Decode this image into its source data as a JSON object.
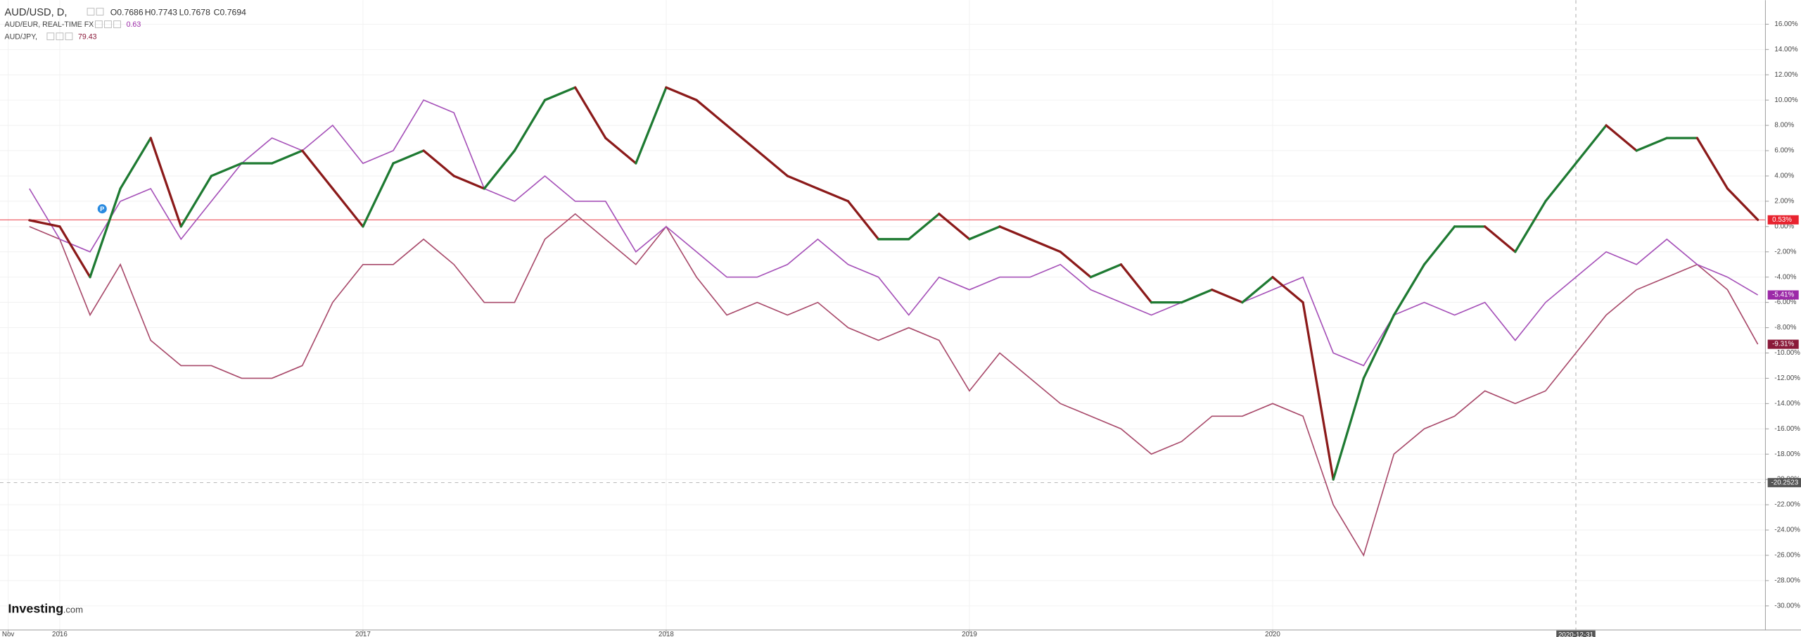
{
  "chart_data": {
    "type": "line",
    "header": {
      "ohlc": [
        "O0.7686",
        "H0.7743",
        "L0.7678",
        "C0.7694"
      ]
    },
    "logo": [
      "Investing",
      ".com"
    ],
    "marker": {
      "label": "P",
      "x": 2016.14,
      "y": 1.4
    },
    "x": [
      2015.9,
      2016.0,
      2016.1,
      2016.2,
      2016.3,
      2016.4,
      2016.5,
      2016.6,
      2016.7,
      2016.8,
      2016.9,
      2017.0,
      2017.1,
      2017.2,
      2017.3,
      2017.4,
      2017.5,
      2017.6,
      2017.7,
      2017.8,
      2017.9,
      2018.0,
      2018.1,
      2018.2,
      2018.3,
      2018.4,
      2018.5,
      2018.6,
      2018.7,
      2018.8,
      2018.9,
      2019.0,
      2019.1,
      2019.2,
      2019.3,
      2019.4,
      2019.5,
      2019.6,
      2019.7,
      2019.8,
      2019.9,
      2020.0,
      2020.1,
      2020.2,
      2020.3,
      2020.4,
      2020.5,
      2020.6,
      2020.7,
      2020.8,
      2020.9,
      2021.0,
      2021.1,
      2021.2,
      2021.3,
      2021.4,
      2021.5,
      2021.6
    ],
    "xlim": [
      2015.803,
      2021.625
    ],
    "xticks": [
      {
        "value": 2015.83,
        "label": "Nov"
      },
      2016,
      2017,
      2018,
      2019,
      2020
    ],
    "ylim": [
      -31.9,
      17.9
    ],
    "yticks": [
      {
        "value": 16,
        "label": "16.00%"
      },
      {
        "value": 14,
        "label": "14.00%"
      },
      {
        "value": 12,
        "label": "12.00%"
      },
      {
        "value": 10,
        "label": "10.00%"
      },
      {
        "value": 8,
        "label": "8.00%"
      },
      {
        "value": 6,
        "label": "6.00%"
      },
      {
        "value": 4,
        "label": "4.00%"
      },
      {
        "value": 2,
        "label": "2.00%"
      },
      {
        "value": 0,
        "label": "0.00%"
      },
      {
        "value": -2,
        "label": "-2.00%"
      },
      {
        "value": -4,
        "label": "-4.00%"
      },
      {
        "value": -6,
        "label": "-6.00%"
      },
      {
        "value": -8,
        "label": "-8.00%"
      },
      {
        "value": -10,
        "label": "-10.00%"
      },
      {
        "value": -12,
        "label": "-12.00%"
      },
      {
        "value": -14,
        "label": "-14.00%"
      },
      {
        "value": -16,
        "label": "-16.00%"
      },
      {
        "value": -18,
        "label": "-18.00%"
      },
      {
        "value": -20,
        "label": "-20.00%"
      },
      {
        "value": -22,
        "label": "-22.00%"
      },
      {
        "value": -24,
        "label": "-24.00%"
      },
      {
        "value": -26,
        "label": "-26.00%"
      },
      {
        "value": -28,
        "label": "-28.00%"
      },
      {
        "value": -30,
        "label": "-30.00%"
      }
    ],
    "grid": true,
    "crosshair": {
      "x": {
        "value": 2021.0,
        "label": "2020-12-31"
      },
      "y": -20.2523
    },
    "series": [
      {
        "name": "AUD/USD, D,",
        "color": "#1e7a32",
        "down_color": "#8b1a1a",
        "label_color": "#e8232f",
        "values": [
          0.5,
          0,
          -4,
          3,
          7,
          0,
          4,
          5,
          5,
          6,
          3,
          0,
          5,
          6,
          4,
          3,
          6,
          10,
          11,
          7,
          5,
          11,
          10,
          8,
          6,
          4,
          3,
          2,
          -1,
          -1,
          1,
          -1,
          0,
          -1,
          -2,
          -4,
          -3,
          -6,
          -6,
          -5,
          -6,
          -4,
          -6,
          -20,
          -12,
          -7,
          -3,
          0,
          0,
          -2,
          2,
          5,
          8,
          6,
          7,
          7,
          3,
          0.53
        ],
        "value_labels": [
          null,
          null,
          null,
          null,
          null,
          null,
          null,
          null,
          null,
          null,
          null,
          null,
          null,
          null,
          null,
          null,
          null,
          null,
          null,
          null,
          null,
          null,
          null,
          null,
          null,
          null,
          null,
          null,
          null,
          null,
          null,
          null,
          null,
          null,
          null,
          null,
          null,
          null,
          null,
          null,
          null,
          null,
          null,
          null,
          null,
          null,
          null,
          null,
          null,
          null,
          null,
          null,
          null,
          null,
          null,
          null,
          null,
          "0.53%"
        ]
      },
      {
        "name": "AUD/EUR, REAL-TIME FX",
        "last_price": "0.63",
        "color": "#a550b8",
        "label_color": "#9c2aa8",
        "values": [
          3,
          -1,
          -2,
          2,
          3,
          -1,
          2,
          5,
          7,
          6,
          8,
          5,
          6,
          10,
          9,
          3,
          2,
          4,
          2,
          2,
          -2,
          0,
          -2,
          -4,
          -4,
          -3,
          -1,
          -3,
          -4,
          -7,
          -4,
          -5,
          -4,
          -4,
          -3,
          -5,
          -6,
          -7,
          -6,
          -5,
          -6,
          -5,
          -4,
          -10,
          -11,
          -7,
          -6,
          -7,
          -6,
          -9,
          -6,
          -4,
          -2,
          -3,
          -1,
          -3,
          -4,
          -5.41
        ],
        "value_labels": [
          null,
          null,
          null,
          null,
          null,
          null,
          null,
          null,
          null,
          null,
          null,
          null,
          null,
          null,
          null,
          null,
          null,
          null,
          null,
          null,
          null,
          null,
          null,
          null,
          null,
          null,
          null,
          null,
          null,
          null,
          null,
          null,
          null,
          null,
          null,
          null,
          null,
          null,
          null,
          null,
          null,
          null,
          null,
          null,
          null,
          null,
          null,
          null,
          null,
          null,
          null,
          null,
          null,
          null,
          null,
          null,
          null,
          "-5.41%"
        ]
      },
      {
        "name": "AUD/JPY,",
        "last_price": "79.43",
        "color": "#a8496a",
        "label_color": "#8a1a3a",
        "values": [
          0,
          -1,
          -7,
          -3,
          -9,
          -11,
          -11,
          -12,
          -12,
          -11,
          -6,
          -3,
          -3,
          -1,
          -3,
          -6,
          -6,
          -1,
          1,
          -1,
          -3,
          0,
          -4,
          -7,
          -6,
          -7,
          -6,
          -8,
          -9,
          -8,
          -9,
          -13,
          -10,
          -12,
          -14,
          -15,
          -16,
          -18,
          -17,
          -15,
          -15,
          -14,
          -15,
          -22,
          -26,
          -18,
          -16,
          -15,
          -13,
          -14,
          -13,
          -10,
          -7,
          -5,
          -4,
          -3,
          -5,
          -9.31
        ],
        "value_labels": [
          null,
          null,
          null,
          null,
          null,
          null,
          null,
          null,
          null,
          null,
          null,
          null,
          null,
          null,
          null,
          null,
          null,
          null,
          null,
          null,
          null,
          null,
          null,
          null,
          null,
          null,
          null,
          null,
          null,
          null,
          null,
          null,
          null,
          null,
          null,
          null,
          null,
          null,
          null,
          null,
          null,
          null,
          null,
          null,
          null,
          null,
          null,
          null,
          null,
          null,
          null,
          null,
          null,
          null,
          null,
          null,
          null,
          "-9.31%"
        ]
      }
    ]
  }
}
